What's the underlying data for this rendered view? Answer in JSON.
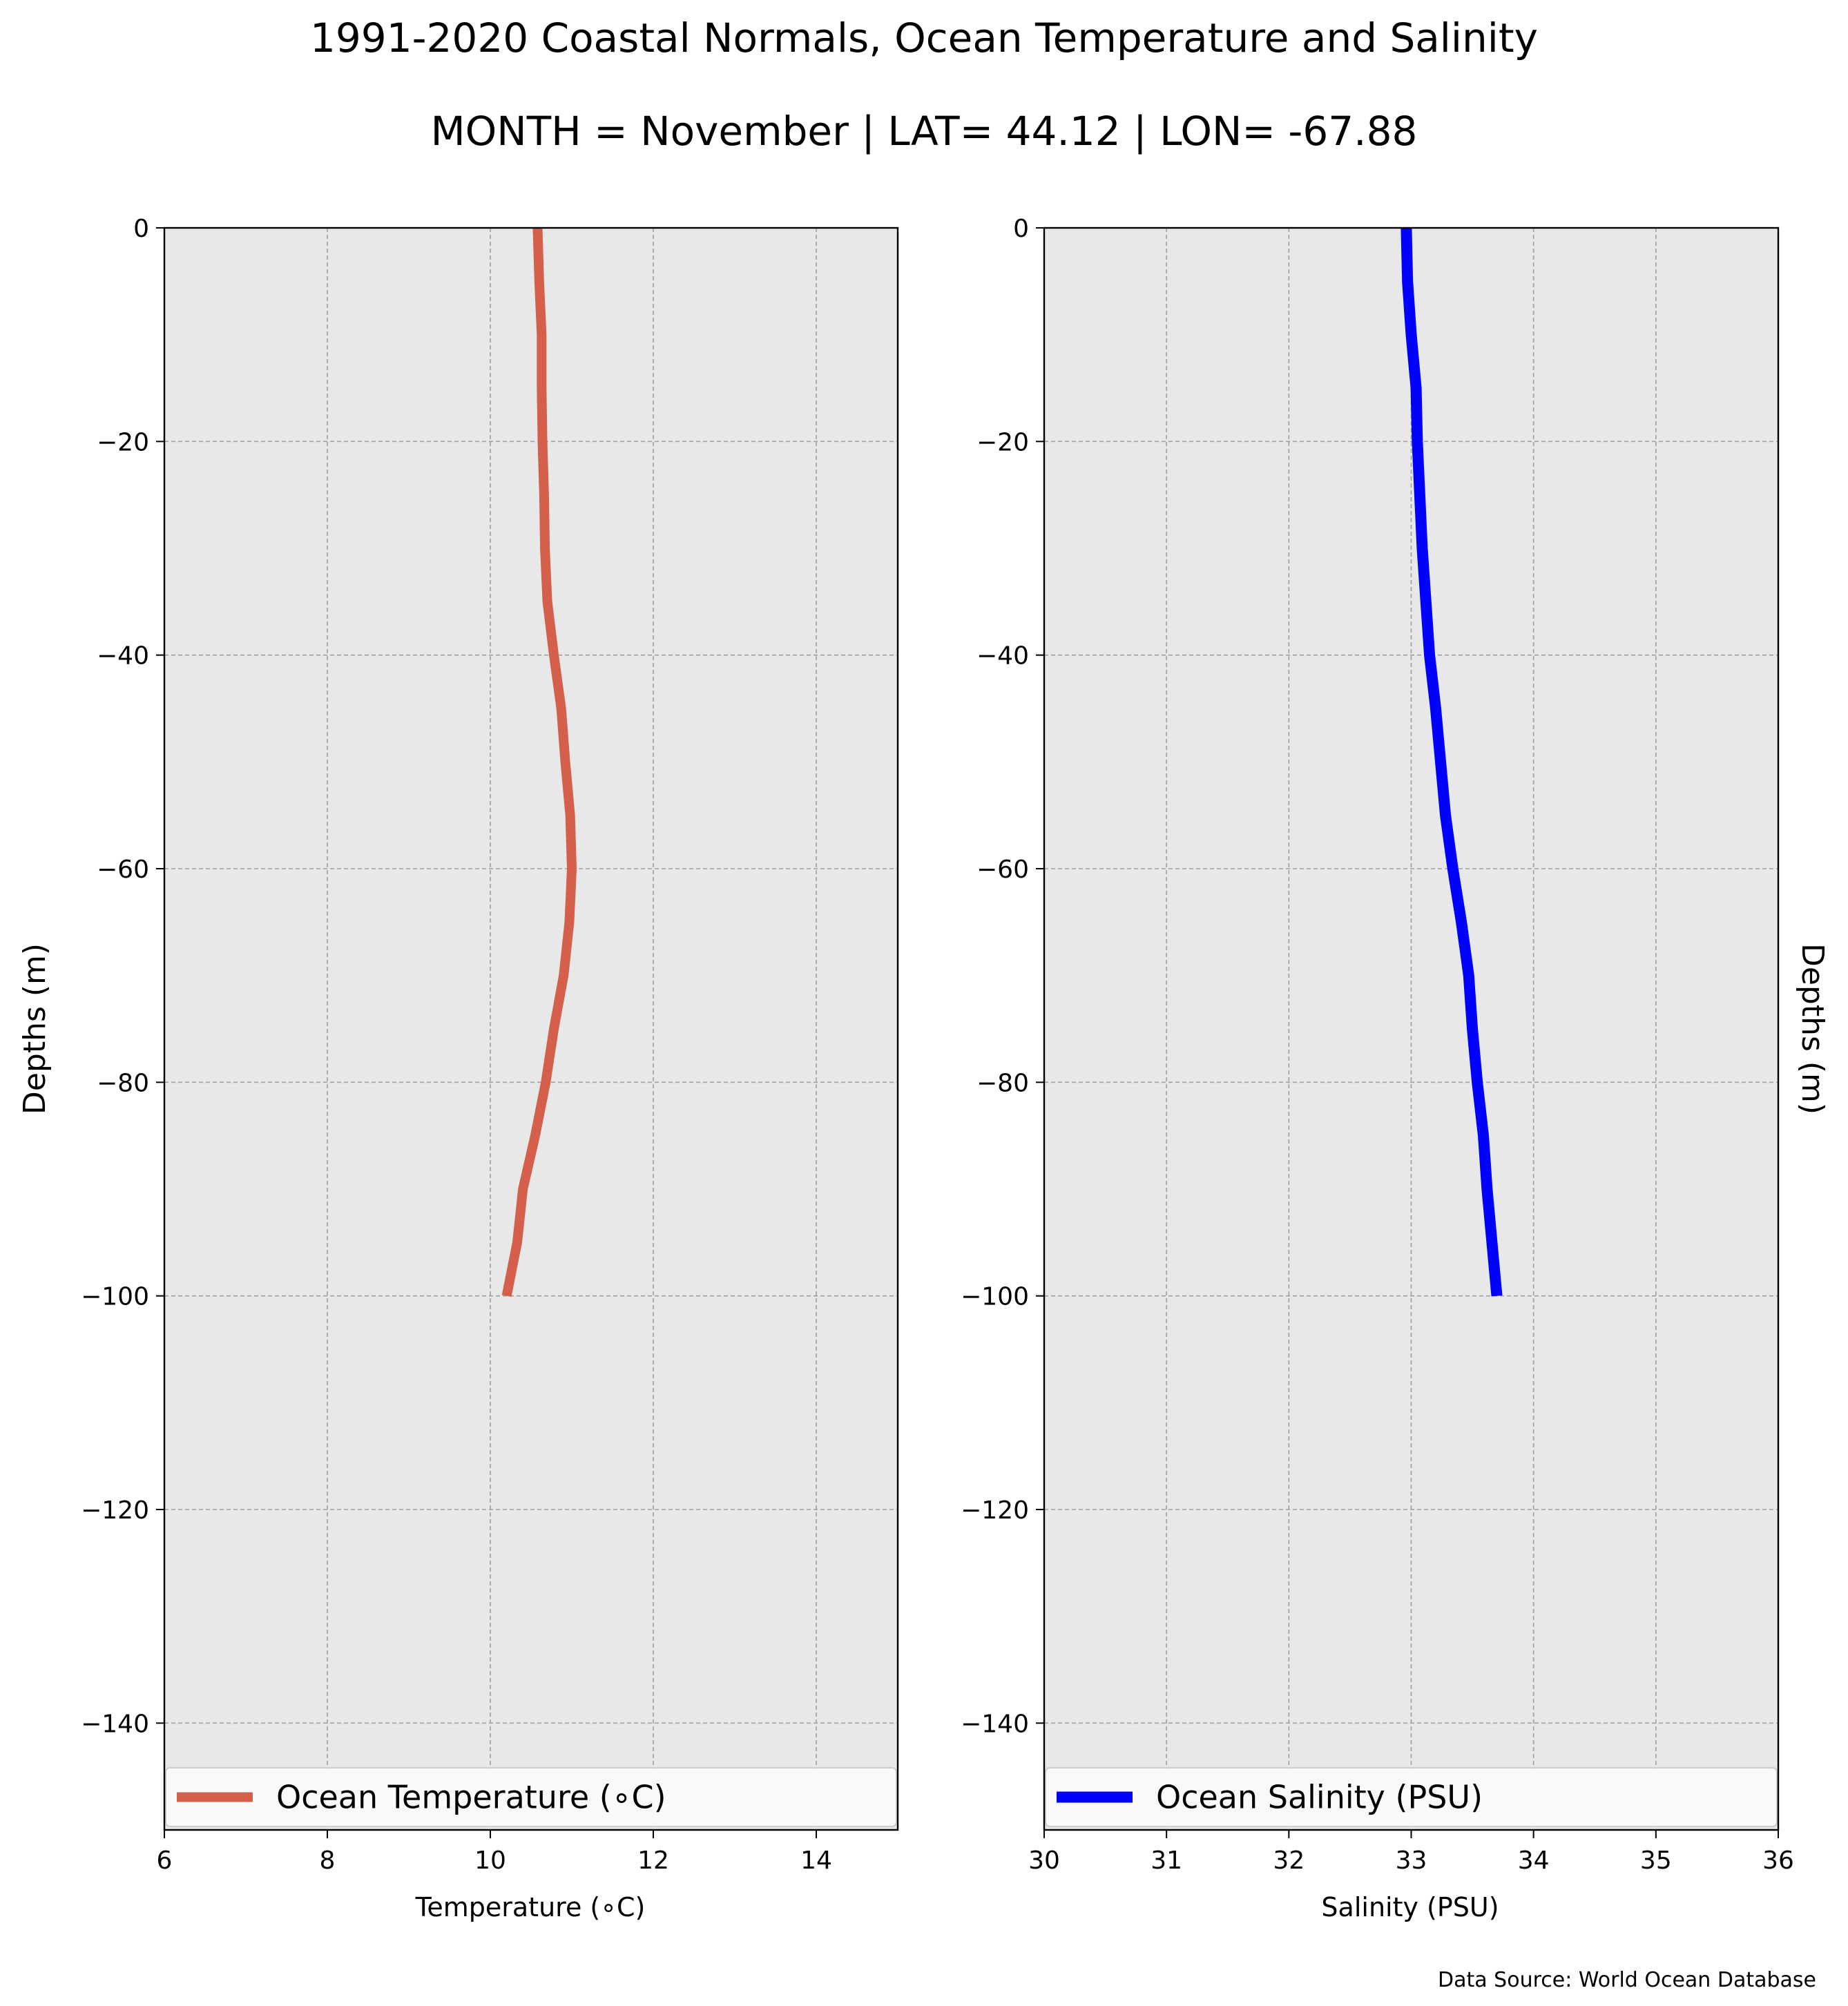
{
  "title": "1991-2020 Coastal Normals, Ocean Temperature and Salinity",
  "subtitle": "MONTH = November | LAT= 44.12 | LON= -67.88",
  "source_note": "Data Source: World Ocean Database",
  "colors": {
    "background": "#e8e8e8",
    "grid": "#a0a0a0",
    "temperature": "#d45f4a",
    "salinity": "#0000ff"
  },
  "chart_data": [
    {
      "type": "line",
      "xlabel": "Temperature ($^\\circ$C)",
      "xlabel_display": "Temperature (∘C)",
      "ylabel": "Depths (m)",
      "xlim": [
        6,
        15
      ],
      "ylim": [
        -150,
        0
      ],
      "xticks": [
        6,
        8,
        10,
        12,
        14
      ],
      "yticks": [
        0,
        -20,
        -40,
        -60,
        -80,
        -100,
        -120,
        -140
      ],
      "grid": true,
      "legend_position": "bottom",
      "series": [
        {
          "name": "Ocean Temperature (∘C)",
          "x": [
            10.58,
            10.6,
            10.63,
            10.63,
            10.64,
            10.66,
            10.67,
            10.7,
            10.78,
            10.87,
            10.92,
            10.98,
            11.0,
            10.97,
            10.9,
            10.78,
            10.68,
            10.55,
            10.4,
            10.33,
            10.2
          ],
          "y": [
            0,
            -5,
            -10,
            -15,
            -20,
            -25,
            -30,
            -35,
            -40,
            -45,
            -50,
            -55,
            -60,
            -65,
            -70,
            -75,
            -80,
            -85,
            -90,
            -95,
            -100
          ]
        }
      ]
    },
    {
      "type": "line",
      "xlabel": "Salinity (PSU)",
      "ylabel": "Depths (m)",
      "xlim": [
        30,
        36
      ],
      "ylim": [
        -150,
        0
      ],
      "xticks": [
        30,
        31,
        32,
        33,
        34,
        35,
        36
      ],
      "yticks": [
        0,
        -20,
        -40,
        -60,
        -80,
        -100,
        -120,
        -140
      ],
      "grid": true,
      "legend_position": "bottom",
      "series": [
        {
          "name": "Ocean Salinity (PSU)",
          "x": [
            32.96,
            32.97,
            33.0,
            33.04,
            33.05,
            33.07,
            33.09,
            33.12,
            33.15,
            33.2,
            33.24,
            33.28,
            33.34,
            33.41,
            33.47,
            33.5,
            33.54,
            33.59,
            33.62,
            33.66,
            33.7
          ],
          "y": [
            0,
            -5,
            -10,
            -15,
            -20,
            -25,
            -30,
            -35,
            -40,
            -45,
            -50,
            -55,
            -60,
            -65,
            -70,
            -75,
            -80,
            -85,
            -90,
            -95,
            -100
          ]
        }
      ]
    }
  ]
}
